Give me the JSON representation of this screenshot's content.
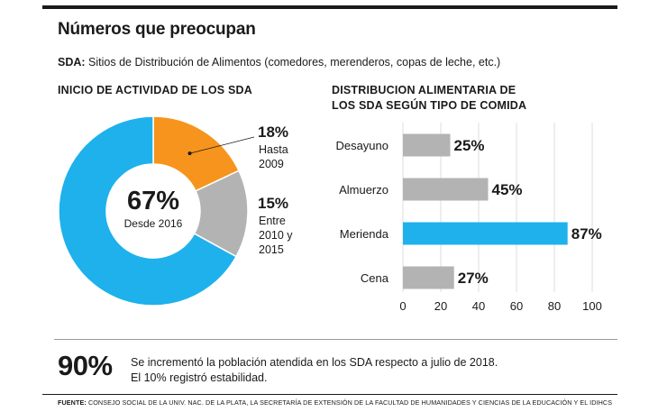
{
  "headline": "Números que preocupan",
  "subtitle": {
    "label": "SDA:",
    "text": "Sitios de Distribución de Alimentos (comedores, merenderos, copas de leche, etc.)"
  },
  "chart_data": [
    {
      "type": "pie",
      "title": "INICIO DE ACTIVIDAD DE LOS SDA",
      "slices": [
        {
          "label_lines": [
            "Hasta",
            "2009"
          ],
          "value": 18,
          "display": "18%",
          "color": "#f7941d"
        },
        {
          "label_lines": [
            "Entre",
            "2010 y",
            "2015"
          ],
          "value": 15,
          "display": "15%",
          "color": "#b3b3b3"
        },
        {
          "label_lines": [
            "Desde 2016"
          ],
          "value": 67,
          "display": "67%",
          "color": "#1eb1ec"
        }
      ]
    },
    {
      "type": "bar",
      "orientation": "horizontal",
      "title_lines": [
        "DISTRIBUCION ALIMENTARIA DE",
        "LOS SDA SEGÚN TIPO DE COMIDA"
      ],
      "categories": [
        "Desayuno",
        "Almuerzo",
        "Merienda",
        "Cena"
      ],
      "values": [
        25,
        45,
        87,
        27
      ],
      "labels": [
        "25%",
        "45%",
        "87%",
        "27%"
      ],
      "colors": [
        "#b3b3b3",
        "#b3b3b3",
        "#1eb1ec",
        "#b3b3b3"
      ],
      "xlim": [
        0,
        100
      ],
      "xticks": [
        0,
        20,
        40,
        60,
        80,
        100
      ],
      "grid": true
    }
  ],
  "stat": {
    "value": "90%",
    "lines": [
      "Se incrementó la población atendida en los SDA respecto a julio de 2018.",
      "El 10% registró estabilidad."
    ]
  },
  "footer": {
    "label": "FUENTE:",
    "text": "CONSEJO SOCIAL DE LA UNIV. NAC. DE LA PLATA, LA SECRETARÍA DE EXTENSIÓN DE LA FACULTAD DE HUMANIDADES Y CIENCIAS DE LA EDUCACIÓN Y EL IDIHCS"
  }
}
